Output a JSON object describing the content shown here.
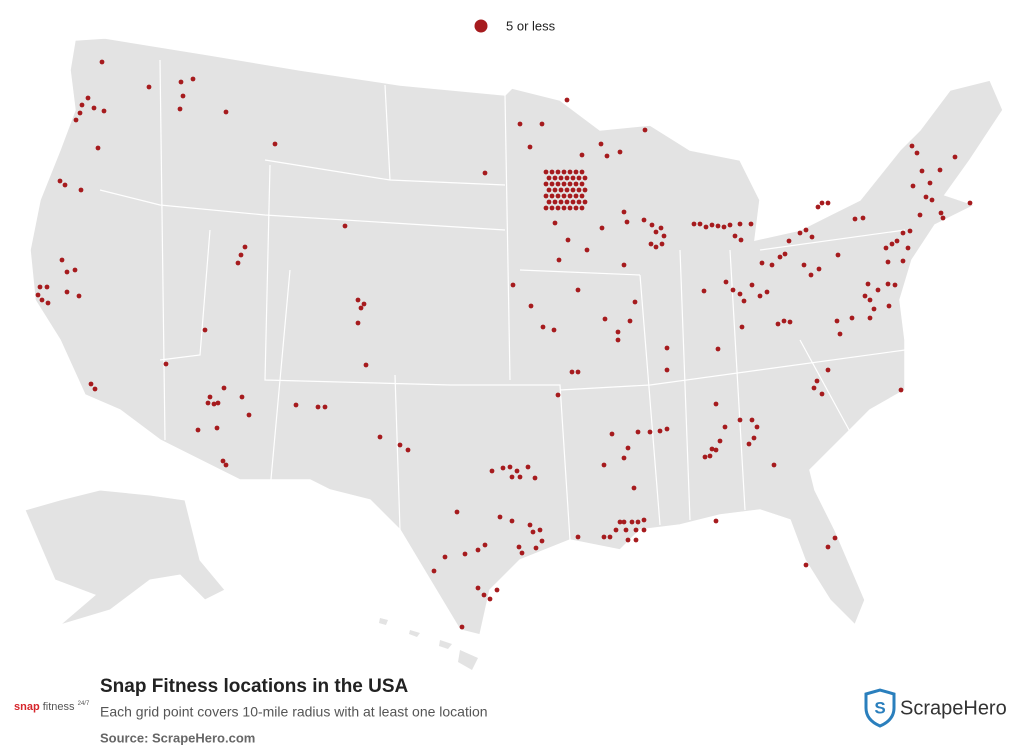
{
  "legend": {
    "label": "5 or less"
  },
  "title": "Snap Fitness locations in the USA",
  "subtitle": "Each grid point covers 10-mile radius with at least one location",
  "source": "Source: ScrapeHero.com",
  "brand_logo": {
    "name": "snap",
    "suffix": "fitness",
    "superscript": "24/7"
  },
  "publisher": "ScrapeHero"
}
